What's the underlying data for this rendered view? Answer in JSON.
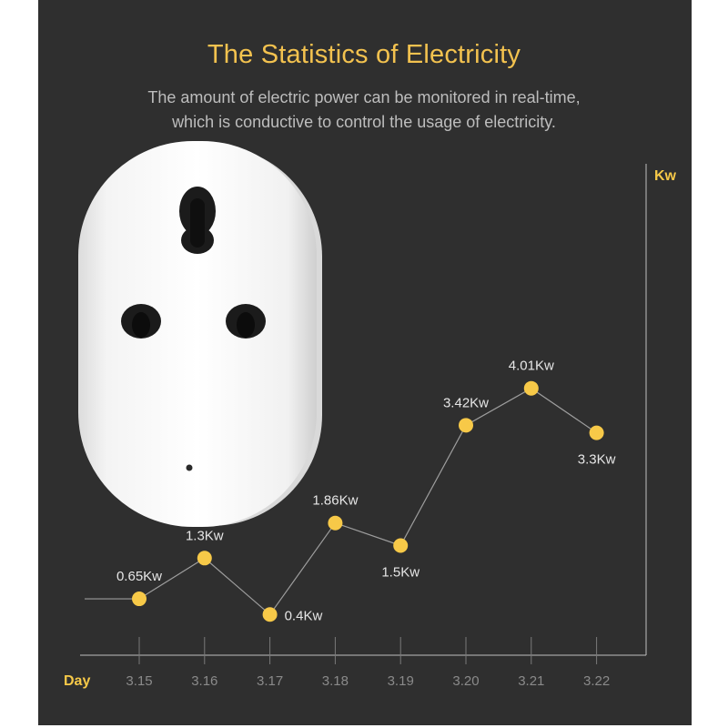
{
  "header": {
    "title": "The Statistics of Electricity",
    "subtitle_lines": [
      "The amount of electric power can be monitored in real-time,",
      "which is conductive to control the usage of electricity."
    ]
  },
  "colors": {
    "panel": "#2f2f2f",
    "accent": "#f7c948",
    "title": "#f3c24f",
    "text": "#bdbdbd",
    "tick": "#8a8a8a",
    "axis": "#bfbfbf",
    "line": "#9e9e9e",
    "label": "#e6e6e6"
  },
  "product": {
    "icon": "smart-plug-socket-icon"
  },
  "chart_data": {
    "type": "line",
    "xlabel": "Day",
    "ylabel": "Kw",
    "categories": [
      "3.15",
      "3.16",
      "3.17",
      "3.18",
      "3.19",
      "3.20",
      "3.21",
      "3.22"
    ],
    "ylim": [
      0,
      6.2
    ],
    "grid": false,
    "series": [
      {
        "values": [
          0.65,
          1.3,
          0.4,
          1.86,
          1.5,
          3.42,
          4.01,
          3.3
        ],
        "labels": [
          "0.65Kw",
          "1.3Kw",
          "0.4Kw",
          "1.86Kw",
          "1.5Kw",
          "3.42Kw",
          "4.01Kw",
          "3.3Kw"
        ]
      }
    ]
  }
}
